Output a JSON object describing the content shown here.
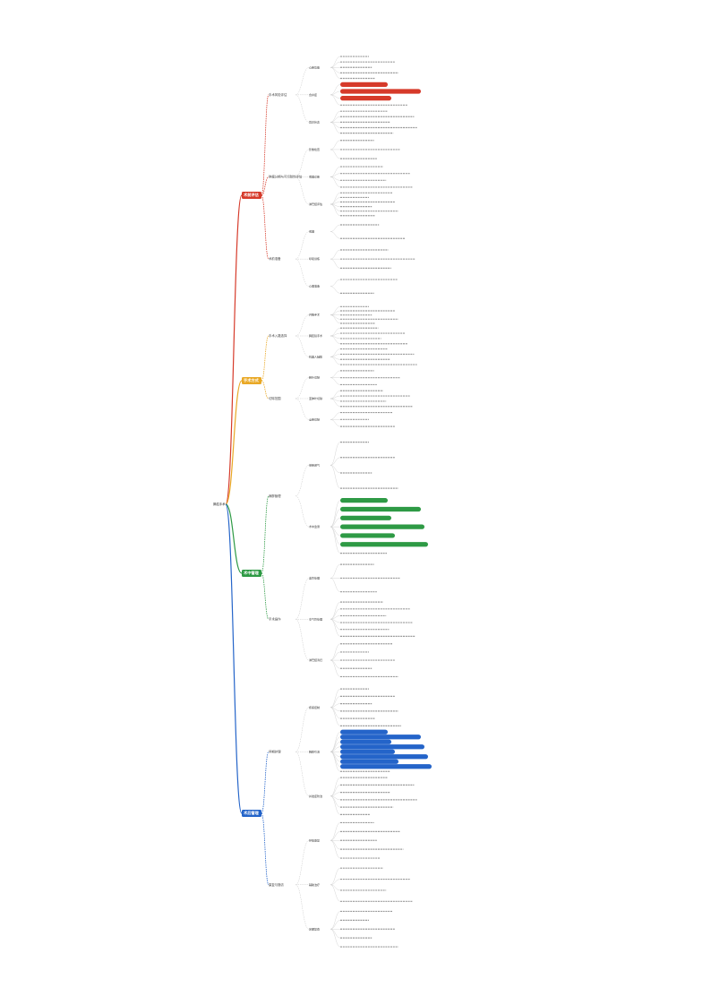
{
  "root": {
    "label": "肺癌手术"
  },
  "colors": {
    "red": "#d63a2a",
    "orange": "#e9a825",
    "green": "#2e9a45",
    "blue": "#2464c9",
    "leaf_line": "#c9c9c9",
    "text": "#333333"
  },
  "branches": [
    {
      "label": "术前评估",
      "color": "red",
      "groups": [
        {
          "label": "手术风险评估",
          "children": [
            {
              "label": "心肺功能",
              "leaves": 5
            },
            {
              "label": "合并症",
              "leaves": 4,
              "pills": 3
            },
            {
              "label": "营养状态",
              "leaves": 5
            }
          ]
        },
        {
          "label": "肿瘤分期与可切除性评估",
          "children": [
            {
              "label": "影像检查",
              "leaves": 3
            },
            {
              "label": "病理诊断",
              "leaves": 4
            },
            {
              "label": "淋巴结评估",
              "leaves": 6
            }
          ]
        },
        {
          "label": "术前准备",
          "children": [
            {
              "label": "戒烟",
              "leaves": 2
            },
            {
              "label": "呼吸训练",
              "leaves": 3
            },
            {
              "label": "心理准备",
              "leaves": 2
            }
          ]
        }
      ]
    },
    {
      "label": "手术方式",
      "color": "orange",
      "groups": [
        {
          "label": "手术入路选择",
          "children": [
            {
              "label": "开胸手术",
              "leaves": 5
            },
            {
              "label": "胸腔镜手术",
              "leaves": 4
            },
            {
              "label": "机器人辅助",
              "leaves": 4
            }
          ]
        },
        {
          "label": "切除范围",
          "children": [
            {
              "label": "肺叶切除",
              "leaves": 3
            },
            {
              "label": "亚肺叶切除",
              "leaves": 4
            },
            {
              "label": "全肺切除",
              "leaves": 3
            }
          ]
        }
      ]
    },
    {
      "label": "术中管理",
      "color": "green",
      "groups": [
        {
          "label": "麻醉管理",
          "children": [
            {
              "label": "单肺通气",
              "leaves": 4
            },
            {
              "label": "术中监测",
              "leaves": 7,
              "pills": 6
            }
          ]
        },
        {
          "label": "手术操作",
          "children": [
            {
              "label": "血管处理",
              "leaves": 3
            },
            {
              "label": "支气管处理",
              "leaves": 6
            },
            {
              "label": "淋巴结清扫",
              "leaves": 5
            }
          ]
        }
      ]
    },
    {
      "label": "术后管理",
      "color": "blue",
      "groups": [
        {
          "label": "早期护理",
          "children": [
            {
              "label": "疼痛控制",
              "leaves": 6
            },
            {
              "label": "胸腔引流",
              "leaves": 9,
              "pills": 8
            },
            {
              "label": "并发症防治",
              "leaves": 6
            }
          ]
        },
        {
          "label": "康复与随访",
          "children": [
            {
              "label": "呼吸康复",
              "leaves": 5
            },
            {
              "label": "辅助治疗",
              "leaves": 4
            },
            {
              "label": "定期复查",
              "leaves": 5
            }
          ]
        }
      ]
    }
  ]
}
